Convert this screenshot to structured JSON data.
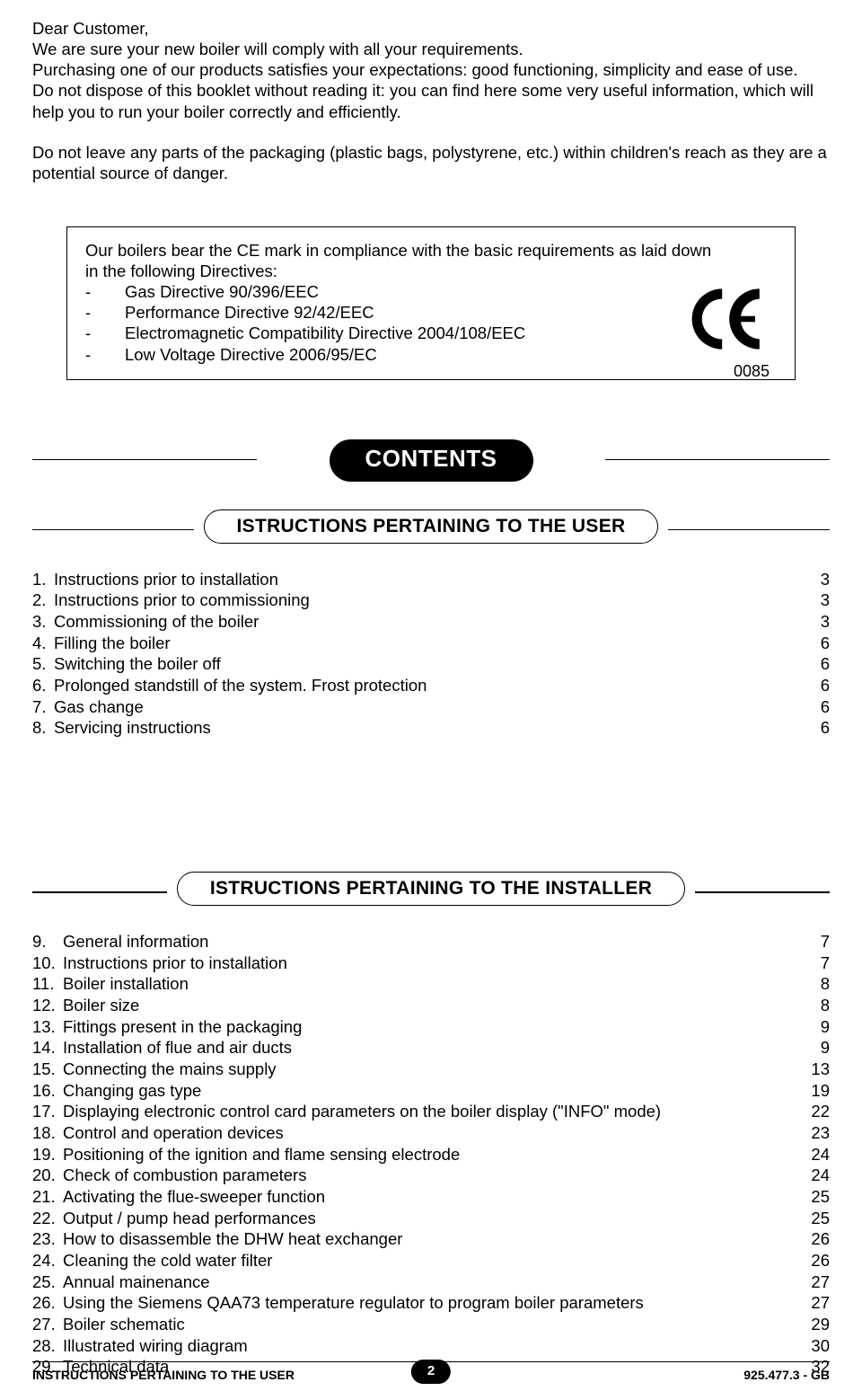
{
  "intro": {
    "p1": "Dear Customer,",
    "p2": "We are sure your new boiler will comply with all your requirements.",
    "p3": "Purchasing one of our products satisfies your expectations: good functioning, simplicity and ease of use.",
    "p4": "Do not dispose of this booklet without reading it: you can find here some very useful information, which will help you to run your boiler correctly and efficiently.",
    "p5": "Do not leave any parts of the packaging (plastic bags, polystyrene, etc.) within children's reach as they are a potential source of danger."
  },
  "ce": {
    "text": "Our boilers bear the CE mark in compliance with the basic requirements as laid down",
    "text2": "in the following Directives:",
    "directives": [
      "Gas Directive 90/396/EEC",
      "Performance Directive 92/42/EEC",
      "Electromagnetic Compatibility Directive 2004/108/EEC",
      "Low Voltage Directive 2006/95/EC"
    ],
    "code": "0085"
  },
  "headings": {
    "contents": "CONTENTS",
    "user": "ISTRUCTIONS PERTAINING TO THE USER",
    "installer": "ISTRUCTIONS PERTAINING TO THE INSTALLER"
  },
  "toc_user": [
    {
      "n": "1.",
      "t": "Instructions prior to installation",
      "p": "3"
    },
    {
      "n": "2.",
      "t": "Instructions prior to commissioning",
      "p": "3"
    },
    {
      "n": "3.",
      "t": "Commissioning of the boiler",
      "p": "3"
    },
    {
      "n": "4.",
      "t": "Filling the boiler",
      "p": "6"
    },
    {
      "n": "5.",
      "t": "Switching the boiler off",
      "p": "6"
    },
    {
      "n": "6.",
      "t": "Prolonged standstill of the system. Frost protection",
      "p": "6"
    },
    {
      "n": "7.",
      "t": "Gas change",
      "p": "6"
    },
    {
      "n": "8.",
      "t": "Servicing instructions",
      "p": "6"
    }
  ],
  "toc_installer": [
    {
      "n": "9.",
      "t": "General information",
      "p": "7"
    },
    {
      "n": "10.",
      "t": "Instructions prior to installation",
      "p": "7"
    },
    {
      "n": "11.",
      "t": "Boiler installation",
      "p": "8"
    },
    {
      "n": "12.",
      "t": "Boiler size",
      "p": "8"
    },
    {
      "n": "13.",
      "t": "Fittings present in the packaging",
      "p": "9"
    },
    {
      "n": "14.",
      "t": "Installation of flue and air ducts",
      "p": "9"
    },
    {
      "n": "15.",
      "t": "Connecting the mains supply",
      "p": "13"
    },
    {
      "n": "16.",
      "t": "Changing gas type",
      "p": "19"
    },
    {
      "n": "17.",
      "t": "Displaying electronic control card parameters on the boiler display (\"INFO\" mode)",
      "p": "22"
    },
    {
      "n": "18.",
      "t": "Control and operation devices",
      "p": "23"
    },
    {
      "n": "19.",
      "t": "Positioning of the ignition and flame sensing electrode",
      "p": "24"
    },
    {
      "n": "20.",
      "t": "Check of combustion parameters",
      "p": "24"
    },
    {
      "n": "21.",
      "t": "Activating the flue-sweeper function",
      "p": "25"
    },
    {
      "n": "22.",
      "t": "Output / pump head performances",
      "p": "25"
    },
    {
      "n": "23.",
      "t": "How to disassemble the DHW heat exchanger",
      "p": "26"
    },
    {
      "n": "24.",
      "t": "Cleaning the cold water filter",
      "p": "26"
    },
    {
      "n": "25.",
      "t": "Annual mainenance",
      "p": "27"
    },
    {
      "n": "26.",
      "t": "Using the Siemens QAA73 temperature regulator to program boiler parameters",
      "p": "27"
    },
    {
      "n": "27.",
      "t": "Boiler schematic",
      "p": "29"
    },
    {
      "n": "28.",
      "t": "Illustrated wiring diagram",
      "p": "30"
    },
    {
      "n": "29.",
      "t": "Technical data",
      "p": "32"
    }
  ],
  "footer": {
    "left": "INSTRUCTIONS PERTAINING TO THE USER",
    "page": "2",
    "right": "925.477.3 - GB"
  }
}
